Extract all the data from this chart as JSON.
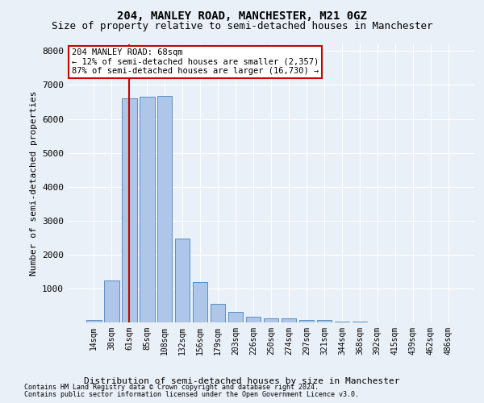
{
  "title": "204, MANLEY ROAD, MANCHESTER, M21 0GZ",
  "subtitle": "Size of property relative to semi-detached houses in Manchester",
  "xlabel": "Distribution of semi-detached houses by size in Manchester",
  "ylabel": "Number of semi-detached properties",
  "footnote1": "Contains HM Land Registry data © Crown copyright and database right 2024.",
  "footnote2": "Contains public sector information licensed under the Open Government Licence v3.0.",
  "annotation_title": "204 MANLEY ROAD: 68sqm",
  "annotation_line1": "← 12% of semi-detached houses are smaller (2,357)",
  "annotation_line2": "87% of semi-detached houses are larger (16,730) →",
  "bar_categories": [
    "14sqm",
    "38sqm",
    "61sqm",
    "85sqm",
    "108sqm",
    "132sqm",
    "156sqm",
    "179sqm",
    "203sqm",
    "226sqm",
    "250sqm",
    "274sqm",
    "297sqm",
    "321sqm",
    "344sqm",
    "368sqm",
    "392sqm",
    "415sqm",
    "439sqm",
    "462sqm",
    "486sqm"
  ],
  "bar_values": [
    80,
    1230,
    6600,
    6650,
    6680,
    2480,
    1180,
    550,
    310,
    175,
    120,
    110,
    80,
    60,
    30,
    20,
    10,
    5,
    3,
    2,
    1
  ],
  "bar_color": "#aec6e8",
  "bar_edge_color": "#5a8fc0",
  "highlight_line_color": "#cc0000",
  "annotation_box_color": "#ffffff",
  "annotation_box_edge": "#cc0000",
  "ylim": [
    0,
    8200
  ],
  "yticks": [
    0,
    1000,
    2000,
    3000,
    4000,
    5000,
    6000,
    7000,
    8000
  ],
  "background_color": "#eaf0f8",
  "grid_color": "#ffffff",
  "title_fontsize": 10,
  "subtitle_fontsize": 9
}
